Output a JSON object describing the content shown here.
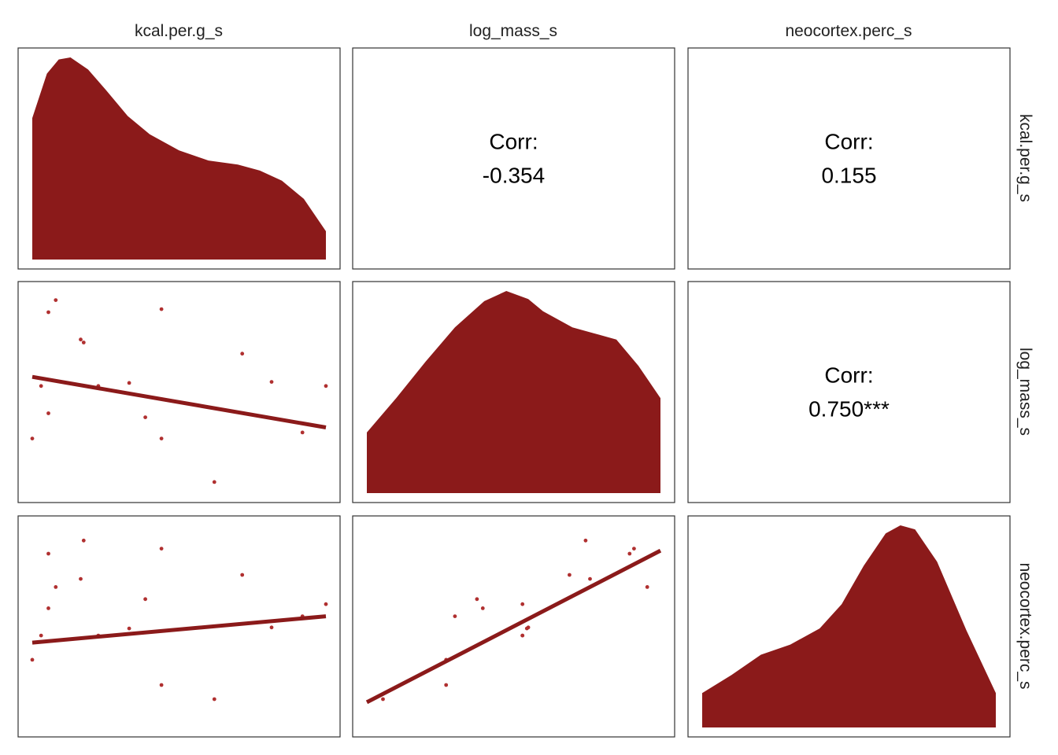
{
  "variables": [
    "kcal.per.g_s",
    "log_mass_s",
    "neocortex.perc_s"
  ],
  "colors": {
    "fill": "#8b1a1a",
    "point": "#b03030",
    "line": "#8b1a1a",
    "frame": "#333333",
    "text": "#000000"
  },
  "chart_data": {
    "type": "scatter",
    "layout": "pairs-matrix",
    "columns": [
      "kcal.per.g_s",
      "log_mass_s",
      "neocortex.perc_s"
    ],
    "rows": [
      "kcal.per.g_s",
      "log_mass_s",
      "neocortex.perc_s"
    ],
    "observations": {
      "kcal.per.g_s": [
        -1.0,
        -0.94,
        -0.89,
        -0.89,
        -0.84,
        -0.67,
        -0.65,
        -0.55,
        -0.34,
        -0.23,
        -0.12,
        -0.12,
        0.24,
        0.43,
        0.63,
        0.84,
        1.0
      ],
      "log_mass_s": [
        -0.46,
        0.06,
        0.79,
        -0.21,
        0.91,
        0.52,
        0.49,
        0.06,
        0.09,
        -0.25,
        -0.46,
        0.82,
        -0.89,
        0.38,
        0.1,
        -0.4,
        0.06
      ],
      "neocortex.perc_s": [
        -0.33,
        -0.09,
        0.72,
        0.18,
        0.39,
        0.47,
        0.85,
        -0.09,
        -0.02,
        0.27,
        -0.58,
        0.77,
        -0.72,
        0.51,
        -0.01,
        0.1,
        0.22
      ]
    },
    "regression": [
      {
        "row": "log_mass_s",
        "col": "kcal.per.g_s",
        "from": [
          -1.0,
          0.15
        ],
        "to": [
          1.0,
          -0.35
        ]
      },
      {
        "row": "neocortex.perc_s",
        "col": "kcal.per.g_s",
        "from": [
          -1.0,
          -0.16
        ],
        "to": [
          1.0,
          0.1
        ]
      },
      {
        "row": "neocortex.perc_s",
        "col": "log_mass_s",
        "from": [
          -1.0,
          -0.75
        ],
        "to": [
          1.0,
          0.75
        ]
      }
    ],
    "densities": {
      "kcal.per.g_s": [
        [
          -1.0,
          0.7
        ],
        [
          -0.9,
          0.92
        ],
        [
          -0.82,
          0.99
        ],
        [
          -0.74,
          1.0
        ],
        [
          -0.62,
          0.94
        ],
        [
          -0.5,
          0.84
        ],
        [
          -0.35,
          0.71
        ],
        [
          -0.2,
          0.62
        ],
        [
          0.0,
          0.54
        ],
        [
          0.2,
          0.49
        ],
        [
          0.4,
          0.47
        ],
        [
          0.55,
          0.44
        ],
        [
          0.7,
          0.39
        ],
        [
          0.85,
          0.3
        ],
        [
          1.0,
          0.14
        ]
      ],
      "log_mass_s": [
        [
          -1.0,
          0.3
        ],
        [
          -0.8,
          0.47
        ],
        [
          -0.6,
          0.65
        ],
        [
          -0.4,
          0.82
        ],
        [
          -0.2,
          0.95
        ],
        [
          -0.05,
          1.0
        ],
        [
          0.1,
          0.96
        ],
        [
          0.2,
          0.9
        ],
        [
          0.4,
          0.82
        ],
        [
          0.55,
          0.79
        ],
        [
          0.7,
          0.76
        ],
        [
          0.85,
          0.63
        ],
        [
          1.0,
          0.47
        ]
      ],
      "neocortex.perc_s": [
        [
          -1.0,
          0.17
        ],
        [
          -0.8,
          0.26
        ],
        [
          -0.6,
          0.36
        ],
        [
          -0.4,
          0.41
        ],
        [
          -0.2,
          0.49
        ],
        [
          -0.05,
          0.61
        ],
        [
          0.1,
          0.8
        ],
        [
          0.25,
          0.96
        ],
        [
          0.35,
          1.0
        ],
        [
          0.45,
          0.98
        ],
        [
          0.6,
          0.82
        ],
        [
          0.8,
          0.48
        ],
        [
          1.0,
          0.17
        ]
      ]
    },
    "correlations": [
      {
        "row": "kcal.per.g_s",
        "col": "log_mass_s",
        "label": "Corr:",
        "value": "-0.354"
      },
      {
        "row": "kcal.per.g_s",
        "col": "neocortex.perc_s",
        "label": "Corr:",
        "value": "0.155"
      },
      {
        "row": "log_mass_s",
        "col": "neocortex.perc_s",
        "label": "Corr:",
        "value": "0.750***"
      }
    ],
    "grid": false,
    "legend": "none"
  }
}
